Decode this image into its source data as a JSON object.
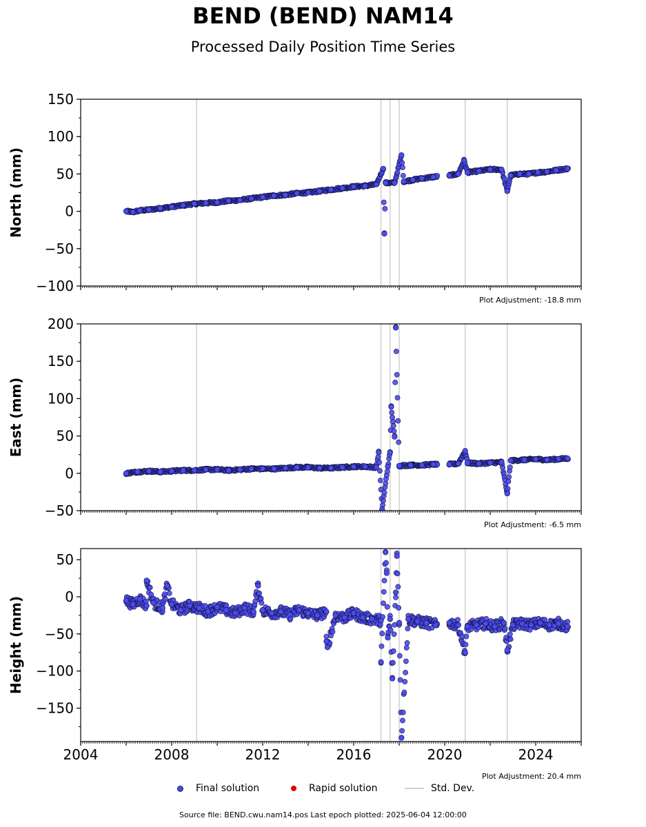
{
  "title": "BEND (BEND) NAM14",
  "subtitle": "Processed Daily Position Time Series",
  "colors": {
    "final": "#4b4bf0",
    "rapid": "#e00000",
    "stddev": "#cccccc"
  },
  "legend": {
    "final": "Final solution",
    "rapid": "Rapid solution",
    "stddev": "Std. Dev."
  },
  "footer": "Source file: BEND.cwu.nam14.pos  Last epoch plotted: 2025-06-04 12:00:00",
  "chart_data": [
    {
      "type": "scatter",
      "ylabel": "North (mm)",
      "ylim": [
        -100,
        150
      ],
      "yticks": [
        -100,
        -50,
        0,
        50,
        100,
        150
      ],
      "xlim": [
        2004,
        2026
      ],
      "xticks": [
        2004,
        2008,
        2012,
        2016,
        2020,
        2024
      ],
      "show_xtick_labels": false,
      "adjustment": "Plot Adjustment: -18.8 mm",
      "series": [
        {
          "values": [
            [
              2006.0,
              0
            ],
            [
              2006.3,
              -1
            ],
            [
              2006.6,
              1
            ],
            [
              2007.0,
              2
            ],
            [
              2007.5,
              4
            ],
            [
              2008.0,
              6
            ],
            [
              2008.5,
              8
            ],
            [
              2009.0,
              10
            ],
            [
              2009.5,
              11
            ],
            [
              2010.0,
              12
            ],
            [
              2010.5,
              14
            ],
            [
              2011.0,
              15
            ],
            [
              2011.5,
              17
            ],
            [
              2012.0,
              19
            ],
            [
              2012.5,
              21
            ],
            [
              2013.0,
              22
            ],
            [
              2013.5,
              24
            ],
            [
              2014.0,
              25
            ],
            [
              2014.5,
              27
            ],
            [
              2015.0,
              29
            ],
            [
              2015.5,
              31
            ],
            [
              2016.0,
              33
            ],
            [
              2016.5,
              34
            ],
            [
              2017.0,
              36
            ],
            [
              2017.4,
              38
            ],
            [
              2017.8,
              38
            ],
            [
              2018.2,
              40
            ],
            [
              2018.6,
              42
            ],
            [
              2019.0,
              44
            ],
            [
              2019.5,
              46
            ],
            [
              2020.2,
              48
            ],
            [
              2020.6,
              50
            ],
            [
              2021.0,
              52
            ],
            [
              2021.5,
              54
            ],
            [
              2022.0,
              56
            ],
            [
              2022.5,
              56
            ],
            [
              2022.9,
              48
            ],
            [
              2023.3,
              50
            ],
            [
              2023.7,
              50
            ],
            [
              2024.1,
              52
            ],
            [
              2024.5,
              53
            ],
            [
              2024.9,
              55
            ],
            [
              2025.4,
              57
            ],
            [
              2017.3,
              57
            ],
            [
              2017.35,
              -30
            ],
            [
              2018.1,
              75
            ],
            [
              2020.85,
              68
            ],
            [
              2022.75,
              27
            ]
          ]
        }
      ]
    },
    {
      "type": "scatter",
      "ylabel": "East (mm)",
      "ylim": [
        -50,
        200
      ],
      "yticks": [
        -50,
        0,
        50,
        100,
        150,
        200
      ],
      "xlim": [
        2004,
        2026
      ],
      "xticks": [
        2004,
        2008,
        2012,
        2016,
        2020,
        2024
      ],
      "show_xtick_labels": false,
      "adjustment": "Plot Adjustment: -6.5 mm",
      "series": [
        {
          "values": [
            [
              2006.0,
              0
            ],
            [
              2006.5,
              2
            ],
            [
              2007.0,
              3
            ],
            [
              2007.5,
              2
            ],
            [
              2008.0,
              3
            ],
            [
              2008.5,
              4
            ],
            [
              2009.0,
              4
            ],
            [
              2009.5,
              5
            ],
            [
              2010.0,
              5
            ],
            [
              2010.5,
              4
            ],
            [
              2011.0,
              5
            ],
            [
              2011.5,
              6
            ],
            [
              2012.0,
              6
            ],
            [
              2012.5,
              6
            ],
            [
              2013.0,
              7
            ],
            [
              2013.5,
              8
            ],
            [
              2014.0,
              8
            ],
            [
              2014.5,
              7
            ],
            [
              2015.0,
              7
            ],
            [
              2015.5,
              8
            ],
            [
              2016.0,
              9
            ],
            [
              2016.5,
              9
            ],
            [
              2017.0,
              8
            ],
            [
              2017.5,
              9
            ],
            [
              2018.0,
              10
            ],
            [
              2018.5,
              11
            ],
            [
              2019.0,
              11
            ],
            [
              2019.5,
              12
            ],
            [
              2020.2,
              12
            ],
            [
              2020.6,
              13
            ],
            [
              2021.0,
              14
            ],
            [
              2021.5,
              13
            ],
            [
              2022.0,
              14
            ],
            [
              2022.5,
              15
            ],
            [
              2022.9,
              17
            ],
            [
              2023.5,
              18
            ],
            [
              2024.0,
              19
            ],
            [
              2024.5,
              18
            ],
            [
              2025.0,
              19
            ],
            [
              2025.4,
              20
            ],
            [
              2017.1,
              28
            ],
            [
              2017.25,
              -48
            ],
            [
              2017.6,
              28
            ],
            [
              2017.65,
              89
            ],
            [
              2017.8,
              49
            ],
            [
              2017.85,
              195
            ],
            [
              2020.9,
              30
            ],
            [
              2022.75,
              -27
            ]
          ]
        }
      ]
    },
    {
      "type": "scatter",
      "ylabel": "Height (mm)",
      "ylim": [
        -195,
        65
      ],
      "yticks": [
        -150,
        -100,
        -50,
        0,
        50
      ],
      "xlim": [
        2004,
        2026
      ],
      "xticks": [
        2004,
        2008,
        2012,
        2016,
        2020,
        2024
      ],
      "xticklabels": [
        "2004",
        "2008",
        "2012",
        "2016",
        "2020",
        "2024"
      ],
      "show_xtick_labels": true,
      "adjustment": "Plot Adjustment: 20.4 mm",
      "series": [
        {
          "values": [
            [
              2006.0,
              -5
            ],
            [
              2006.3,
              -10
            ],
            [
              2006.6,
              -3
            ],
            [
              2006.9,
              -12
            ],
            [
              2007.2,
              -8
            ],
            [
              2007.6,
              -15
            ],
            [
              2008.0,
              -10
            ],
            [
              2008.4,
              -18
            ],
            [
              2008.8,
              -12
            ],
            [
              2009.2,
              -15
            ],
            [
              2009.6,
              -20
            ],
            [
              2010.0,
              -14
            ],
            [
              2010.4,
              -18
            ],
            [
              2010.8,
              -22
            ],
            [
              2011.2,
              -15
            ],
            [
              2011.6,
              -20
            ],
            [
              2012.0,
              -18
            ],
            [
              2012.4,
              -22
            ],
            [
              2012.8,
              -20
            ],
            [
              2013.2,
              -24
            ],
            [
              2013.6,
              -18
            ],
            [
              2014.0,
              -22
            ],
            [
              2014.4,
              -25
            ],
            [
              2014.8,
              -20
            ],
            [
              2015.2,
              -25
            ],
            [
              2015.6,
              -28
            ],
            [
              2016.0,
              -22
            ],
            [
              2016.4,
              -28
            ],
            [
              2016.8,
              -30
            ],
            [
              2017.2,
              -32
            ],
            [
              2017.6,
              -30
            ],
            [
              2018.0,
              -35
            ],
            [
              2018.4,
              -30
            ],
            [
              2018.8,
              -33
            ],
            [
              2019.2,
              -35
            ],
            [
              2019.6,
              -38
            ],
            [
              2020.2,
              -35
            ],
            [
              2020.6,
              -38
            ],
            [
              2021.0,
              -40
            ],
            [
              2021.4,
              -38
            ],
            [
              2021.8,
              -36
            ],
            [
              2022.2,
              -40
            ],
            [
              2022.6,
              -35
            ],
            [
              2023.0,
              -38
            ],
            [
              2023.4,
              -36
            ],
            [
              2023.8,
              -38
            ],
            [
              2024.2,
              -35
            ],
            [
              2024.6,
              -38
            ],
            [
              2025.0,
              -36
            ],
            [
              2025.4,
              -40
            ],
            [
              2006.9,
              22
            ],
            [
              2007.8,
              15
            ],
            [
              2011.8,
              15
            ],
            [
              2014.8,
              -60
            ],
            [
              2014.85,
              -68
            ],
            [
              2017.2,
              -88
            ],
            [
              2017.4,
              60
            ],
            [
              2017.45,
              32
            ],
            [
              2017.5,
              -55
            ],
            [
              2017.7,
              -110
            ],
            [
              2017.85,
              6
            ],
            [
              2017.9,
              55
            ],
            [
              2018.1,
              -190
            ],
            [
              2020.9,
              -75
            ],
            [
              2022.75,
              -72
            ]
          ]
        }
      ]
    }
  ]
}
